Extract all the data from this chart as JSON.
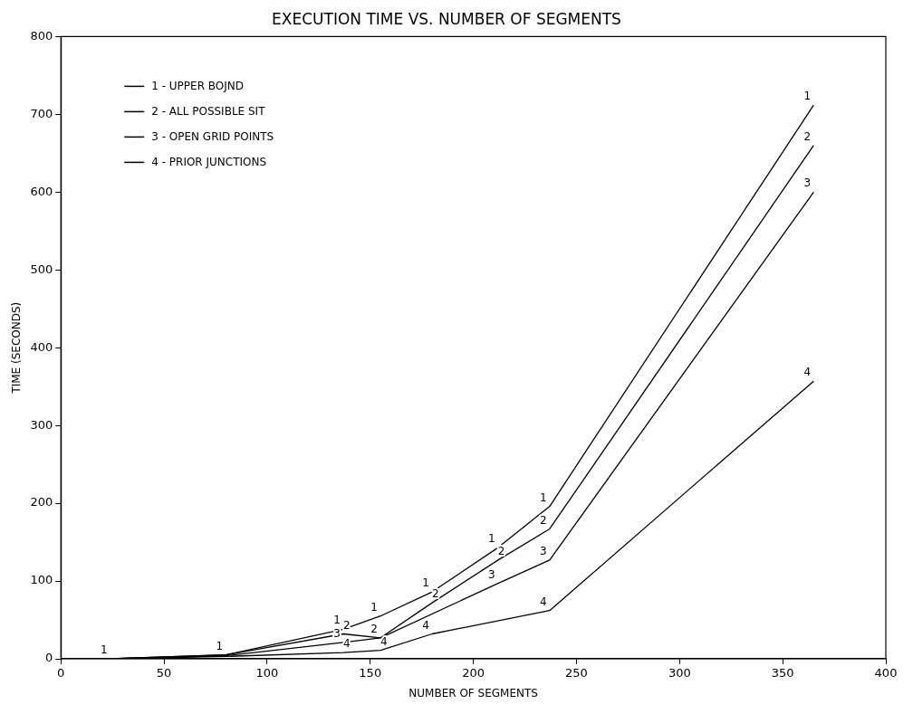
{
  "chart_data": {
    "type": "line",
    "title": "EXECUTION TIME VS. NUMBER OF SEGMENTS",
    "xlabel": "NUMBER OF SEGMENTS",
    "ylabel": "TIME (SECONDS)",
    "xlim": [
      0,
      400
    ],
    "xticks": [
      0,
      50,
      100,
      150,
      200,
      250,
      300,
      350,
      400
    ],
    "ylim": [
      0,
      800
    ],
    "yticks": [
      0,
      100,
      200,
      300,
      400,
      500,
      600,
      700,
      800
    ],
    "grid": false,
    "legend": "top left",
    "marker": "none",
    "line_style": "solid",
    "series": [
      {
        "name": "1 - UPPER BOJND",
        "color": "#000000",
        "x": [
          24,
          80,
          137,
          155,
          180,
          212,
          237,
          365
        ],
        "values": [
          0,
          5,
          38,
          55,
          86,
          143,
          196,
          712
        ]
      },
      {
        "name": "2 - ALL POSSIBLE SIT",
        "color": "#000000",
        "x": [
          24,
          80,
          137,
          155,
          180,
          212,
          237,
          365
        ],
        "values": [
          0,
          5,
          32,
          27,
          72,
          127,
          167,
          660
        ]
      },
      {
        "name": "3 - OPEN GRID POINTS",
        "color": "#000000",
        "x": [
          24,
          80,
          137,
          155,
          212,
          237,
          365
        ],
        "values": [
          0,
          4,
          21,
          27,
          97,
          127,
          600
        ]
      },
      {
        "name": "4 - PRIOR JUNCTIONS",
        "color": "#000000",
        "x": [
          24,
          80,
          137,
          155,
          180,
          237,
          365
        ],
        "values": [
          0,
          3,
          8,
          11,
          32,
          62,
          357
        ]
      }
    ],
    "annotations": [
      {
        "text": "1",
        "x": 24,
        "y": 0
      },
      {
        "text": "1",
        "x": 80,
        "y": 5
      },
      {
        "text": "1",
        "x": 137,
        "y": 38
      },
      {
        "text": "1",
        "x": 155,
        "y": 55
      },
      {
        "text": "1",
        "x": 180,
        "y": 86
      },
      {
        "text": "1",
        "x": 212,
        "y": 143
      },
      {
        "text": "1",
        "x": 237,
        "y": 196
      },
      {
        "text": "1",
        "x": 365,
        "y": 712
      },
      {
        "text": "2",
        "x": 137,
        "y": 32
      },
      {
        "text": "2",
        "x": 155,
        "y": 27
      },
      {
        "text": "2",
        "x": 180,
        "y": 72
      },
      {
        "text": "2",
        "x": 212,
        "y": 127
      },
      {
        "text": "2",
        "x": 237,
        "y": 167
      },
      {
        "text": "2",
        "x": 365,
        "y": 660
      },
      {
        "text": "3",
        "x": 137,
        "y": 21
      },
      {
        "text": "3",
        "x": 212,
        "y": 97
      },
      {
        "text": "3",
        "x": 237,
        "y": 127
      },
      {
        "text": "3",
        "x": 365,
        "y": 600
      },
      {
        "text": "4",
        "x": 137,
        "y": 8
      },
      {
        "text": "4",
        "x": 155,
        "y": 11
      },
      {
        "text": "4",
        "x": 180,
        "y": 32
      },
      {
        "text": "4",
        "x": 237,
        "y": 62
      },
      {
        "text": "4",
        "x": 365,
        "y": 357
      }
    ]
  }
}
